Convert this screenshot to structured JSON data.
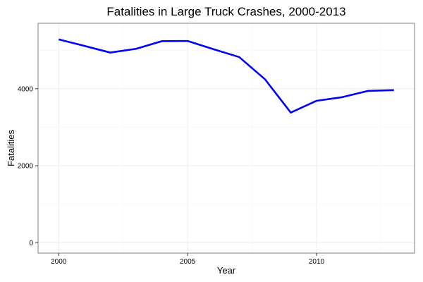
{
  "chart_data": {
    "type": "line",
    "title": "Fatalities in Large Truck Crashes, 2000-2013",
    "xlabel": "Year",
    "ylabel": "Fatalities",
    "x": [
      2000,
      2001,
      2002,
      2003,
      2004,
      2005,
      2006,
      2007,
      2008,
      2009,
      2010,
      2011,
      2012,
      2013
    ],
    "series": [
      {
        "values": [
          5282,
          5111,
          4939,
          5036,
          5235,
          5240,
          5027,
          4822,
          4245,
          3380,
          3686,
          3781,
          3944,
          3964
        ],
        "color": "#0000ff"
      }
    ],
    "xlim": [
      1999.2,
      2013.8
    ],
    "ylim": [
      -270,
      5700
    ],
    "x_ticks": [
      2000,
      2005,
      2010
    ],
    "y_ticks": [
      0,
      2000,
      4000
    ],
    "x_tick_labels": [
      "2000",
      "2005",
      "2010"
    ],
    "y_tick_labels": [
      "0",
      "2000",
      "4000"
    ],
    "grid": true,
    "panel_border_color": "#7f7f7f",
    "grid_major_color": "#ebebeb",
    "grid_minor_color": "#f5f5f5"
  }
}
